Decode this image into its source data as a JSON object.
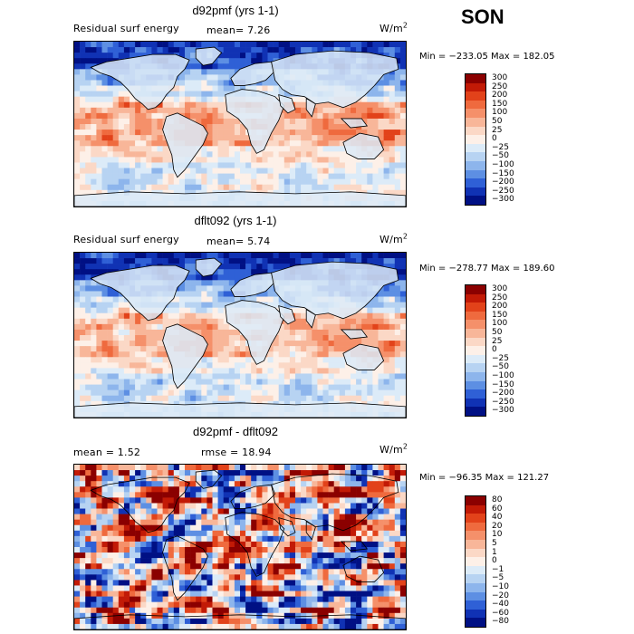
{
  "season": "SON",
  "units_base": "W/m",
  "units_exp": "2",
  "panels": [
    {
      "title": "d92pmf (yrs 1-1)",
      "left_label": "Residual surf energy",
      "stat1": "mean=   7.26",
      "stat2": "",
      "minmax": "Min = −233.05 Max = 182.05",
      "levels": [
        "300",
        "250",
        "200",
        "150",
        "100",
        "50",
        "25",
        "0",
        "−25",
        "−50",
        "−100",
        "−150",
        "−200",
        "−250",
        "−300"
      ]
    },
    {
      "title": "dflt092 (yrs 1-1)",
      "left_label": "Residual surf energy",
      "stat1": "mean=   5.74",
      "stat2": "",
      "minmax": "Min = −278.77 Max = 189.60",
      "levels": [
        "300",
        "250",
        "200",
        "150",
        "100",
        "50",
        "25",
        "0",
        "−25",
        "−50",
        "−100",
        "−150",
        "−200",
        "−250",
        "−300"
      ]
    },
    {
      "title": "d92pmf - dflt092",
      "left_label": "mean =   1.52",
      "stat1": "rmse =   18.94",
      "stat2": "",
      "minmax": "Min = −96.35 Max = 121.27",
      "levels": [
        "80",
        "60",
        "40",
        "20",
        "10",
        "5",
        "1",
        "0",
        "−1",
        "−5",
        "−10",
        "−20",
        "−40",
        "−60",
        "−80"
      ]
    }
  ],
  "colors": {
    "scale": [
      "#8b0000",
      "#c21a06",
      "#e2421a",
      "#ef6a3e",
      "#f5906a",
      "#f8b699",
      "#fbd8c6",
      "#fdf0e8",
      "#dcebf8",
      "#b7d3f2",
      "#8db5ec",
      "#5d8fe3",
      "#2f60d6",
      "#1032b4",
      "#001084"
    ],
    "land": "#dceaf7",
    "coast": "#000000"
  }
}
